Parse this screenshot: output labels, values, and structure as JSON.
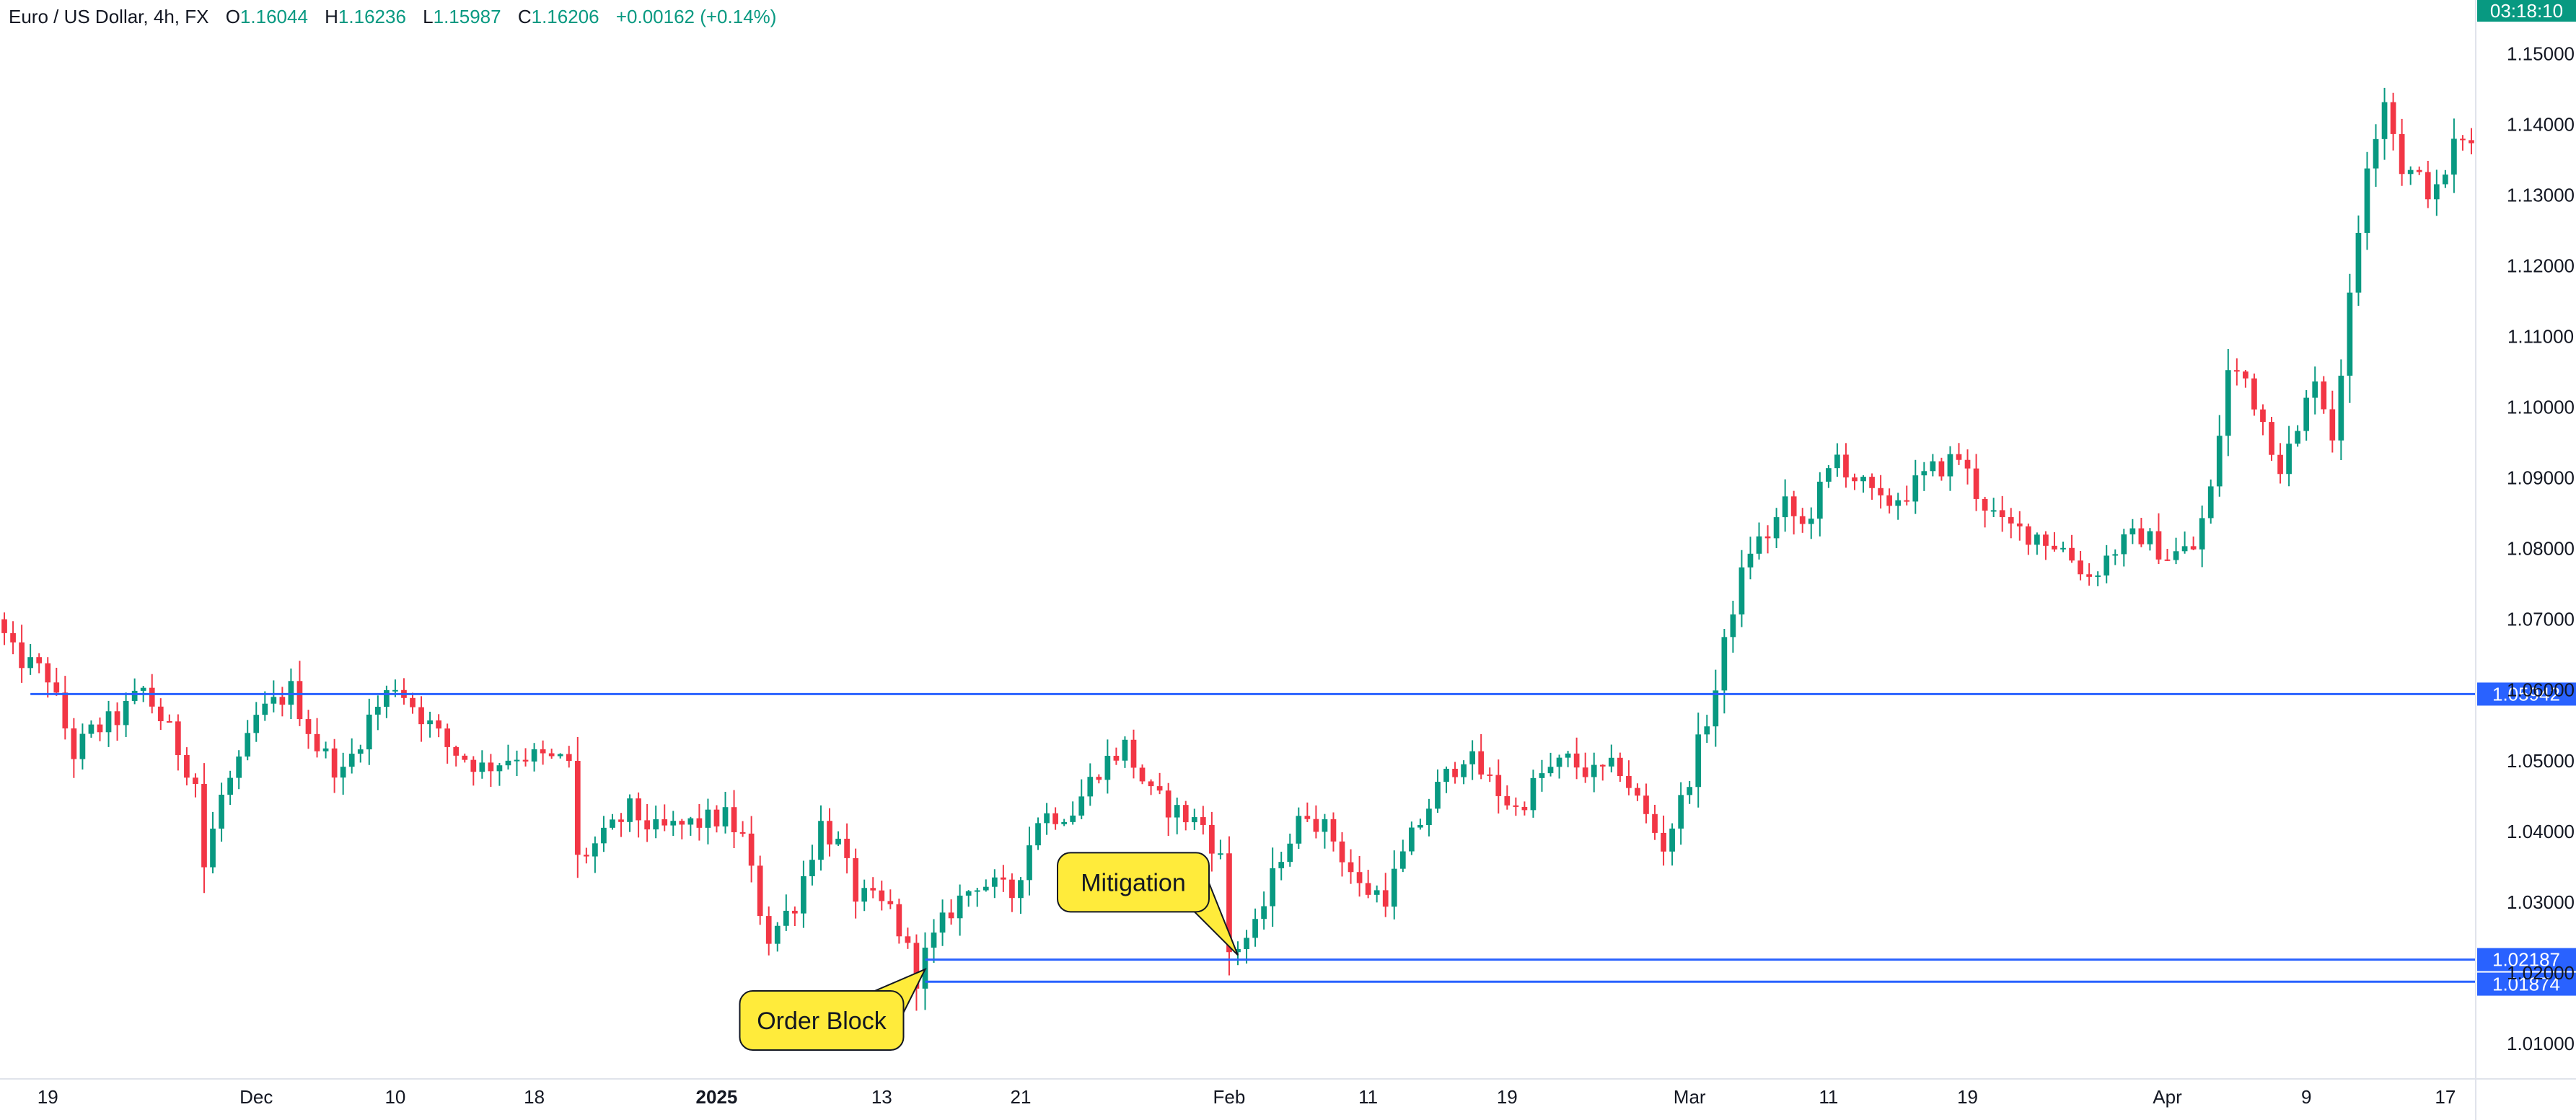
{
  "legend": {
    "symbol": "Euro / US Dollar, 4h, FX",
    "open_label": "O",
    "open": "1.16044",
    "high_label": "H",
    "high": "1.16236",
    "low_label": "L",
    "low": "1.15987",
    "close_label": "C",
    "close": "1.16206",
    "change": "+0.00162 (+0.14%)"
  },
  "clock": "03:18:10",
  "chart_data": {
    "type": "candlestick",
    "ylim": [
      1.005,
      1.1535
    ],
    "y_ticks": [
      "1.15000",
      "1.14000",
      "1.13000",
      "1.12000",
      "1.11000",
      "1.10000",
      "1.09000",
      "1.08000",
      "1.07000",
      "1.06000",
      "1.05000",
      "1.04000",
      "1.03000",
      "1.02000",
      "1.01000"
    ],
    "x_ticks": [
      {
        "label": "19",
        "index": 5
      },
      {
        "label": "Dec",
        "index": 29
      },
      {
        "label": "10",
        "index": 45
      },
      {
        "label": "18",
        "index": 61
      },
      {
        "label": "2025",
        "index": 82,
        "bold": true
      },
      {
        "label": "13",
        "index": 101
      },
      {
        "label": "21",
        "index": 117
      },
      {
        "label": "Feb",
        "index": 141
      },
      {
        "label": "11",
        "index": 157
      },
      {
        "label": "19",
        "index": 173
      },
      {
        "label": "Mar",
        "index": 194
      },
      {
        "label": "11",
        "index": 210
      },
      {
        "label": "19",
        "index": 226
      },
      {
        "label": "Apr",
        "index": 249
      },
      {
        "label": "9",
        "index": 265
      },
      {
        "label": "17",
        "index": 281
      }
    ],
    "bar_count": 285,
    "waypoints": [
      [
        0,
        1.07
      ],
      [
        2,
        1.065
      ],
      [
        6,
        1.062
      ],
      [
        9,
        1.051
      ],
      [
        11,
        1.054
      ],
      [
        14,
        1.056
      ],
      [
        17,
        1.06
      ],
      [
        20,
        1.054
      ],
      [
        23,
        1.047
      ],
      [
        24,
        1.035
      ],
      [
        26,
        1.045
      ],
      [
        28,
        1.049
      ],
      [
        30,
        1.056
      ],
      [
        34,
        1.06
      ],
      [
        37,
        1.052
      ],
      [
        40,
        1.048
      ],
      [
        43,
        1.056
      ],
      [
        46,
        1.061
      ],
      [
        48,
        1.058
      ],
      [
        52,
        1.052
      ],
      [
        56,
        1.049
      ],
      [
        60,
        1.051
      ],
      [
        64,
        1.05
      ],
      [
        66,
        1.05
      ],
      [
        67,
        1.036
      ],
      [
        70,
        1.039
      ],
      [
        73,
        1.043
      ],
      [
        76,
        1.04
      ],
      [
        80,
        1.041
      ],
      [
        84,
        1.042
      ],
      [
        86,
        1.039
      ],
      [
        88,
        1.029
      ],
      [
        89,
        1.025
      ],
      [
        92,
        1.03
      ],
      [
        95,
        1.041
      ],
      [
        97,
        1.038
      ],
      [
        99,
        1.031
      ],
      [
        103,
        1.029
      ],
      [
        105,
        1.023
      ],
      [
        106,
        1.0195
      ],
      [
        107,
        1.0225
      ],
      [
        110,
        1.029
      ],
      [
        113,
        1.033
      ],
      [
        117,
        1.031
      ],
      [
        120,
        1.042
      ],
      [
        124,
        1.043
      ],
      [
        127,
        1.049
      ],
      [
        130,
        1.052
      ],
      [
        133,
        1.045
      ],
      [
        137,
        1.042
      ],
      [
        139,
        1.041
      ],
      [
        141,
        1.036
      ],
      [
        142,
        1.023
      ],
      [
        145,
        1.026
      ],
      [
        148,
        1.037
      ],
      [
        151,
        1.043
      ],
      [
        154,
        1.039
      ],
      [
        157,
        1.032
      ],
      [
        160,
        1.031
      ],
      [
        163,
        1.039
      ],
      [
        166,
        1.046
      ],
      [
        169,
        1.051
      ],
      [
        172,
        1.047
      ],
      [
        175,
        1.043
      ],
      [
        178,
        1.048
      ],
      [
        181,
        1.05
      ],
      [
        184,
        1.048
      ],
      [
        187,
        1.049
      ],
      [
        190,
        1.042
      ],
      [
        192,
        1.038
      ],
      [
        194,
        1.044
      ],
      [
        196,
        1.052
      ],
      [
        198,
        1.06
      ],
      [
        200,
        1.072
      ],
      [
        202,
        1.08
      ],
      [
        204,
        1.082
      ],
      [
        206,
        1.086
      ],
      [
        208,
        1.083
      ],
      [
        210,
        1.088
      ],
      [
        212,
        1.093
      ],
      [
        214,
        1.09
      ],
      [
        217,
        1.086
      ],
      [
        220,
        1.088
      ],
      [
        223,
        1.091
      ],
      [
        226,
        1.093
      ],
      [
        228,
        1.088
      ],
      [
        231,
        1.083
      ],
      [
        235,
        1.082
      ],
      [
        238,
        1.08
      ],
      [
        241,
        1.076
      ],
      [
        244,
        1.08
      ],
      [
        247,
        1.082
      ],
      [
        250,
        1.079
      ],
      [
        253,
        1.08
      ],
      [
        255,
        1.088
      ],
      [
        257,
        1.105
      ],
      [
        259,
        1.104
      ],
      [
        261,
        1.098
      ],
      [
        263,
        1.092
      ],
      [
        265,
        1.096
      ],
      [
        267,
        1.105
      ],
      [
        269,
        1.096
      ],
      [
        271,
        1.115
      ],
      [
        273,
        1.135
      ],
      [
        275,
        1.144
      ],
      [
        277,
        1.134
      ],
      [
        279,
        1.132
      ],
      [
        281,
        1.13
      ],
      [
        283,
        1.137
      ],
      [
        285,
        1.1375
      ]
    ],
    "levels": [
      {
        "value": 1.05942,
        "label": "1.05942",
        "from_index": 3
      },
      {
        "value": 1.02187,
        "label": "1.02187",
        "from_index": 106
      },
      {
        "value": 1.01874,
        "label": "1.01874",
        "from_index": 106
      }
    ],
    "annotations": [
      {
        "text": "Order Block",
        "anchor_index": 106,
        "anchor_value": 1.0205,
        "placement": "below-left"
      },
      {
        "text": "Mitigation",
        "anchor_index": 142,
        "anchor_value": 1.0225,
        "placement": "above-left"
      }
    ],
    "colors": {
      "up": "#089981",
      "down": "#f23645",
      "level": "#2962ff",
      "label_bg": "#2962ff",
      "callout_fill": "#ffeb3b",
      "callout_stroke": "#131722"
    }
  }
}
